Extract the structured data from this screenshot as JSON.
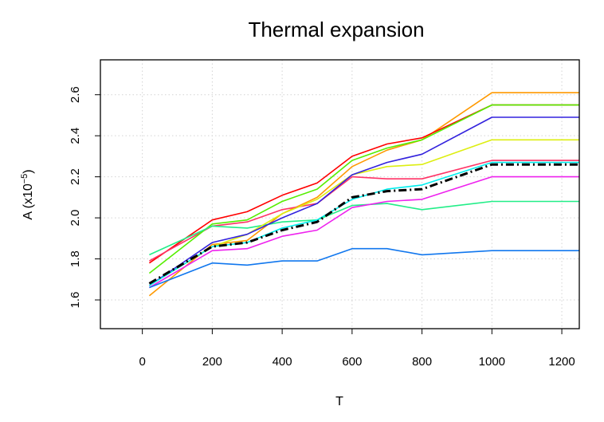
{
  "chart_data": {
    "type": "line",
    "title": "Thermal expansion",
    "xlabel": "T",
    "ylabel_main": "A (x10",
    "ylabel_exp": "−5",
    "ylabel_close": ")",
    "xlim": [
      -120,
      1250
    ],
    "ylim": [
      1.46,
      2.77
    ],
    "x_ticks": [
      0,
      200,
      400,
      600,
      800,
      1000,
      1200
    ],
    "x_tick_labels": [
      "0",
      "200",
      "400",
      "600",
      "800",
      "1000",
      "1200"
    ],
    "y_ticks": [
      1.6,
      1.8,
      2.0,
      2.2,
      2.4,
      2.6
    ],
    "y_tick_labels": [
      "1.6",
      "1.8",
      "2.0",
      "2.2",
      "2.4",
      "2.6"
    ],
    "grid": true,
    "x": [
      20,
      200,
      300,
      400,
      500,
      600,
      700,
      800,
      1000,
      1250
    ],
    "series": [
      {
        "color": "#ff9900",
        "values": [
          1.62,
          1.87,
          1.89,
          2.02,
          2.1,
          2.25,
          2.33,
          2.38,
          2.61,
          2.61
        ]
      },
      {
        "color": "#ff0000",
        "values": [
          1.78,
          1.99,
          2.03,
          2.11,
          2.17,
          2.3,
          2.36,
          2.39,
          2.55,
          2.55
        ]
      },
      {
        "color": "#ff3366",
        "values": [
          1.79,
          1.96,
          1.98,
          2.04,
          2.07,
          2.2,
          2.19,
          2.19,
          2.28,
          2.28
        ]
      },
      {
        "color": "#55ee00",
        "values": [
          1.73,
          1.97,
          1.99,
          2.08,
          2.14,
          2.28,
          2.34,
          2.38,
          2.55,
          2.55
        ]
      },
      {
        "color": "#22ee88",
        "values": [
          1.82,
          1.96,
          1.95,
          1.98,
          1.99,
          2.06,
          2.07,
          2.04,
          2.08,
          2.08
        ]
      },
      {
        "color": "#ddee11",
        "values": [
          1.67,
          1.86,
          1.92,
          2.02,
          2.09,
          2.21,
          2.25,
          2.26,
          2.38,
          2.38
        ]
      },
      {
        "color": "#3322dd",
        "values": [
          1.67,
          1.88,
          1.92,
          2.0,
          2.07,
          2.21,
          2.27,
          2.31,
          2.49,
          2.49
        ]
      },
      {
        "color": "#ee22ee",
        "values": [
          1.66,
          1.84,
          1.85,
          1.91,
          1.94,
          2.05,
          2.08,
          2.09,
          2.2,
          2.2
        ]
      },
      {
        "color": "#1177ee",
        "values": [
          1.66,
          1.78,
          1.77,
          1.79,
          1.79,
          1.85,
          1.85,
          1.82,
          1.84,
          1.84
        ]
      },
      {
        "color": "#00eeee",
        "values": [
          1.67,
          1.86,
          1.88,
          1.95,
          1.99,
          2.09,
          2.14,
          2.16,
          2.27,
          2.27
        ]
      },
      {
        "color": "#000000",
        "dashed": true,
        "values": [
          1.68,
          1.86,
          1.88,
          1.94,
          1.98,
          2.1,
          2.13,
          2.14,
          2.26,
          2.26
        ]
      }
    ]
  }
}
